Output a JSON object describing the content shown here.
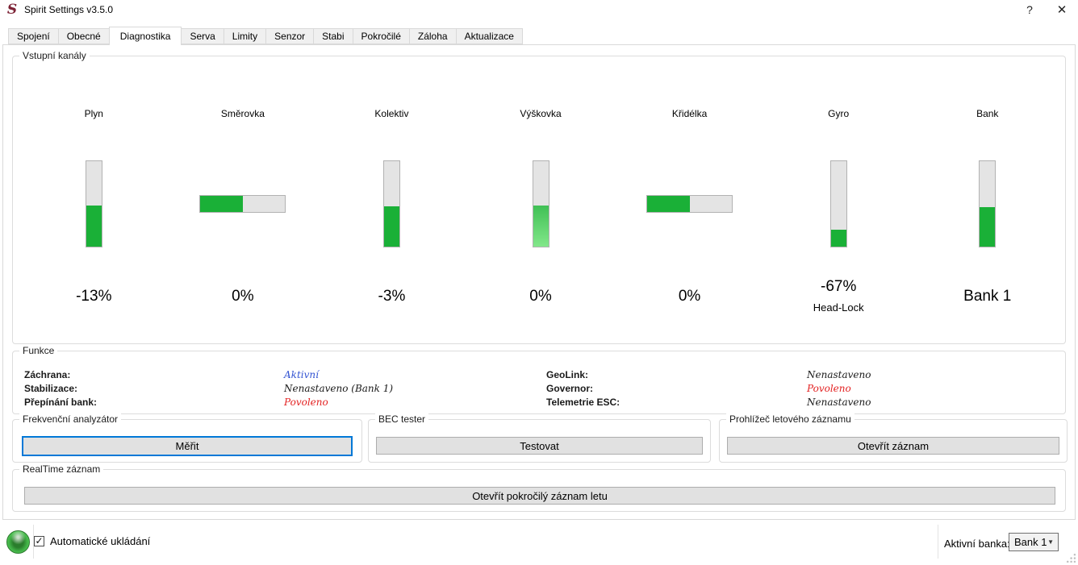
{
  "window": {
    "title": "Spirit Settings v3.5.0",
    "logo_glyph": "S",
    "help_icon": "?",
    "close_icon": "✕"
  },
  "tabs": [
    {
      "label": "Spojení",
      "active": false
    },
    {
      "label": "Obecné",
      "active": false
    },
    {
      "label": "Diagnostika",
      "active": true
    },
    {
      "label": "Serva",
      "active": false
    },
    {
      "label": "Limity",
      "active": false
    },
    {
      "label": "Senzor",
      "active": false
    },
    {
      "label": "Stabi",
      "active": false
    },
    {
      "label": "Pokročilé",
      "active": false
    },
    {
      "label": "Záloha",
      "active": false
    },
    {
      "label": "Aktualizace",
      "active": false
    }
  ],
  "channels": {
    "title": "Vstupní kanály",
    "items": [
      {
        "name": "Plyn",
        "orientation": "vertical",
        "fill_pct": 48,
        "value": "-13%"
      },
      {
        "name": "Směrovka",
        "orientation": "horizontal",
        "fill_pct": 50,
        "value": "0%"
      },
      {
        "name": "Kolektiv",
        "orientation": "vertical",
        "fill_pct": 47,
        "value": "-3%"
      },
      {
        "name": "Výškovka",
        "orientation": "vertical",
        "fill_pct": 48,
        "value": "0%",
        "gradient": true
      },
      {
        "name": "Křidélka",
        "orientation": "horizontal",
        "fill_pct": 50,
        "value": "0%"
      },
      {
        "name": "Gyro",
        "orientation": "vertical",
        "fill_pct": 20,
        "value": "-67%",
        "sub": "Head-Lock"
      },
      {
        "name": "Bank",
        "orientation": "vertical",
        "fill_pct": 46,
        "value": "Bank 1"
      }
    ]
  },
  "functions": {
    "title": "Funkce",
    "left": [
      {
        "label": "Záchrana:",
        "value": "Aktivní",
        "color": "#3253d2"
      },
      {
        "label": "Stabilizace:",
        "value": "Nenastaveno (Bank 1)",
        "color": "#1a1a1a"
      },
      {
        "label": "Přepínání bank:",
        "value": "Povoleno",
        "color": "#e32222"
      }
    ],
    "right": [
      {
        "label": "GeoLink:",
        "value": "Nenastaveno",
        "color": "#1a1a1a"
      },
      {
        "label": "Governor:",
        "value": "Povoleno",
        "color": "#e32222"
      },
      {
        "label": "Telemetrie ESC:",
        "value": "Nenastaveno",
        "color": "#1a1a1a"
      }
    ]
  },
  "freq_group": {
    "title": "Frekvenční analyzátor",
    "button": "Měřit"
  },
  "bec_group": {
    "title": "BEC tester",
    "button": "Testovat"
  },
  "viewer_group": {
    "title": "Prohlížeč letového záznamu",
    "button": "Otevřít záznam"
  },
  "realtime_group": {
    "title": "RealTime záznam",
    "button": "Otevřít pokročilý záznam letu"
  },
  "statusbar": {
    "led_state": "green",
    "autosave_label": "Automatické ukládání",
    "autosave_checked": true,
    "check_glyph": "✓",
    "active_bank_label": "Aktivní banka:",
    "active_bank_value": "Bank 1",
    "combo_arrow_icon": "▼"
  },
  "colors": {
    "bar_green": "#1ab037",
    "bar_track": "#e4e4e4",
    "value_blue": "#3253d2",
    "value_red": "#e32222",
    "default_button_border": "#0078d7",
    "logo_maroon": "#7d2336"
  }
}
